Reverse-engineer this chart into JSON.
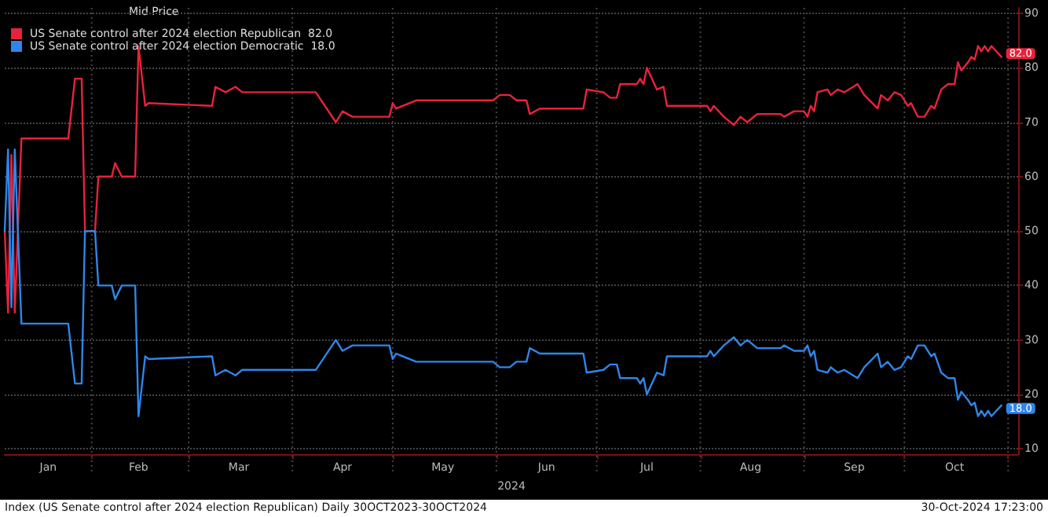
{
  "chart_data": {
    "type": "line",
    "legend_title": "Mid Price",
    "xlabel": "2024",
    "annotations": [
      "Index (US Senate control after 2024 election Republican)  Daily 30OCT2023-30OCT2024",
      "30-Oct-2024 17:23:00"
    ],
    "x": [
      "2024-01-06",
      "2024-01-07",
      "2024-01-08",
      "2024-01-09",
      "2024-01-11",
      "2024-01-25",
      "2024-01-27",
      "2024-01-29",
      "2024-01-30",
      "2024-02-02",
      "2024-02-03",
      "2024-02-07",
      "2024-02-08",
      "2024-02-10",
      "2024-02-14",
      "2024-02-15",
      "2024-02-17",
      "2024-02-18",
      "2024-03-08",
      "2024-03-09",
      "2024-03-12",
      "2024-03-15",
      "2024-03-17",
      "2024-04-08",
      "2024-04-14",
      "2024-04-16",
      "2024-04-19",
      "2024-04-30",
      "2024-05-01",
      "2024-05-02",
      "2024-05-08",
      "2024-05-31",
      "2024-06-02",
      "2024-06-05",
      "2024-06-07",
      "2024-06-10",
      "2024-06-11",
      "2024-06-14",
      "2024-06-27",
      "2024-06-28",
      "2024-07-03",
      "2024-07-05",
      "2024-07-07",
      "2024-07-08",
      "2024-07-13",
      "2024-07-14",
      "2024-07-15",
      "2024-07-16",
      "2024-07-19",
      "2024-07-21",
      "2024-07-22",
      "2024-08-03",
      "2024-08-04",
      "2024-08-05",
      "2024-08-08",
      "2024-08-11",
      "2024-08-13",
      "2024-08-15",
      "2024-08-18",
      "2024-08-25",
      "2024-08-26",
      "2024-08-29",
      "2024-09-01",
      "2024-09-02",
      "2024-09-03",
      "2024-09-04",
      "2024-09-05",
      "2024-09-08",
      "2024-09-09",
      "2024-09-11",
      "2024-09-13",
      "2024-09-17",
      "2024-09-19",
      "2024-09-23",
      "2024-09-24",
      "2024-09-26",
      "2024-09-28",
      "2024-09-30",
      "2024-10-02",
      "2024-10-03",
      "2024-10-05",
      "2024-10-07",
      "2024-10-09",
      "2024-10-10",
      "2024-10-12",
      "2024-10-14",
      "2024-10-16",
      "2024-10-17",
      "2024-10-18",
      "2024-10-20",
      "2024-10-21",
      "2024-10-22",
      "2024-10-23",
      "2024-10-24",
      "2024-10-25",
      "2024-10-26",
      "2024-10-27",
      "2024-10-30"
    ],
    "series": [
      {
        "name": "US Senate control after 2024 election Republican  82.0",
        "color": "#e8223c",
        "values": [
          50,
          35,
          64,
          35,
          67,
          67,
          78,
          78,
          50,
          50,
          60,
          60,
          62.5,
          60,
          60,
          84,
          73,
          73.5,
          73,
          76.5,
          75.5,
          76.5,
          75.5,
          75.5,
          70,
          72,
          71,
          71,
          73.5,
          72.5,
          74,
          74,
          75,
          75,
          74,
          74,
          71.5,
          72.5,
          72.5,
          76,
          75.5,
          74.5,
          74.5,
          77,
          77,
          78,
          77,
          80,
          76,
          76.5,
          73,
          73,
          72,
          73,
          71,
          69.5,
          71,
          70,
          71.5,
          71.5,
          71,
          72,
          72,
          71,
          73,
          72,
          75.5,
          76,
          75,
          76,
          75.5,
          77,
          75,
          72.5,
          75,
          74,
          75.5,
          75,
          73,
          73.5,
          71,
          71,
          73,
          72.5,
          76,
          77,
          77,
          81,
          79.5,
          81,
          82,
          81.5,
          84,
          83,
          84,
          83,
          84,
          82
        ],
        "value_labels": [
          null,
          null,
          null,
          null,
          null,
          null,
          null,
          null,
          null,
          null,
          null,
          null,
          null,
          null,
          null,
          null,
          null,
          null,
          null,
          null,
          null,
          null,
          null,
          null,
          null,
          null,
          null,
          null,
          null,
          null,
          null,
          null,
          null,
          null,
          null,
          null,
          null,
          null,
          null,
          null,
          null,
          null,
          null,
          null,
          null,
          null,
          null,
          null,
          null,
          null,
          null,
          null,
          null,
          null,
          null,
          null,
          null,
          null,
          null,
          null,
          null,
          null,
          null,
          null,
          null,
          null,
          null,
          null,
          null,
          null,
          null,
          null,
          null,
          null,
          null,
          null,
          null,
          null,
          null,
          null,
          null,
          null,
          null,
          null,
          null,
          null,
          null,
          null,
          null,
          null,
          null,
          null,
          null,
          null,
          null,
          null,
          null,
          "82.0"
        ]
      },
      {
        "name": "US Senate control after 2024 election Democratic  18.0",
        "color": "#2f86e8",
        "values": [
          50,
          65,
          36,
          65,
          33,
          33,
          22,
          22,
          50,
          50,
          40,
          40,
          37.5,
          40,
          40,
          16,
          27,
          26.5,
          27,
          23.5,
          24.5,
          23.5,
          24.5,
          24.5,
          30,
          28,
          29,
          29,
          26.5,
          27.5,
          26,
          26,
          25,
          25,
          26,
          26,
          28.5,
          27.5,
          27.5,
          24,
          24.5,
          25.5,
          25.5,
          23,
          23,
          22,
          23,
          20,
          24,
          23.5,
          27,
          27,
          28,
          27,
          29,
          30.5,
          29,
          30,
          28.5,
          28.5,
          29,
          28,
          28,
          29,
          27,
          28,
          24.5,
          24,
          25,
          24,
          24.5,
          23,
          25,
          27.5,
          25,
          26,
          24.5,
          25,
          27,
          26.5,
          29,
          29,
          27,
          27.5,
          24,
          23,
          23,
          19,
          20.5,
          19,
          18,
          18.5,
          16,
          17,
          16,
          17,
          16,
          18
        ],
        "value_labels": [
          null,
          null,
          null,
          null,
          null,
          null,
          null,
          null,
          null,
          null,
          null,
          null,
          null,
          null,
          null,
          null,
          null,
          null,
          null,
          null,
          null,
          null,
          null,
          null,
          null,
          null,
          null,
          null,
          null,
          null,
          null,
          null,
          null,
          null,
          null,
          null,
          null,
          null,
          null,
          null,
          null,
          null,
          null,
          null,
          null,
          null,
          null,
          null,
          null,
          null,
          null,
          null,
          null,
          null,
          null,
          null,
          null,
          null,
          null,
          null,
          null,
          null,
          null,
          null,
          null,
          null,
          null,
          null,
          null,
          null,
          null,
          null,
          null,
          null,
          null,
          null,
          null,
          null,
          null,
          null,
          null,
          null,
          null,
          null,
          null,
          null,
          null,
          null,
          null,
          null,
          null,
          null,
          null,
          null,
          null,
          null,
          null,
          "18.0"
        ]
      }
    ],
    "xlim": [
      "2024-01-06",
      "2024-11-04"
    ],
    "xticks": [
      {
        "value": "2024-01-19",
        "label": "Jan"
      },
      {
        "value": "2024-02-01",
        "label": null
      },
      {
        "value": "2024-02-15",
        "label": "Feb"
      },
      {
        "value": "2024-03-01",
        "label": null
      },
      {
        "value": "2024-03-16",
        "label": "Mar"
      },
      {
        "value": "2024-04-01",
        "label": null
      },
      {
        "value": "2024-04-16",
        "label": "Apr"
      },
      {
        "value": "2024-05-01",
        "label": null
      },
      {
        "value": "2024-05-16",
        "label": "May"
      },
      {
        "value": "2024-06-01",
        "label": null
      },
      {
        "value": "2024-06-16",
        "label": "Jun"
      },
      {
        "value": "2024-07-01",
        "label": null
      },
      {
        "value": "2024-07-16",
        "label": "Jul"
      },
      {
        "value": "2024-08-01",
        "label": null
      },
      {
        "value": "2024-08-16",
        "label": "Aug"
      },
      {
        "value": "2024-09-01",
        "label": null
      },
      {
        "value": "2024-09-16",
        "label": "Sep"
      },
      {
        "value": "2024-10-01",
        "label": null
      },
      {
        "value": "2024-10-16",
        "label": "Oct"
      },
      {
        "value": "2024-11-01",
        "label": null
      }
    ],
    "ylim": [
      9,
      91
    ],
    "yticks": [
      10,
      20,
      30,
      40,
      50,
      60,
      70,
      80,
      90
    ],
    "grid": true,
    "legend": "top left",
    "marker": "none",
    "line_style": "solid"
  }
}
